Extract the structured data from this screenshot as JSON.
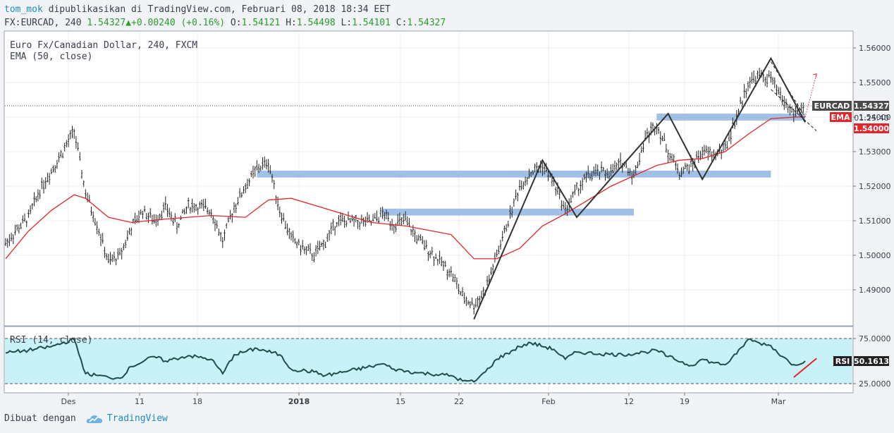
{
  "header": {
    "author": "tom_mok",
    "published": "dipublikasikan di TradingView.com, Februari 08, 2018 18:34 EET",
    "symbol": "FX:EURCAD, 240",
    "last": "1.54327",
    "arrow": "▲",
    "change": "+0.00240 (+0.16%)",
    "o_label": "O:",
    "o": "1.54121",
    "h_label": "H:",
    "h": "1.54498",
    "l_label": "L:",
    "l": "1.54101",
    "c_label": "C:",
    "c": "1.54327"
  },
  "legend": {
    "line1": "Euro Fx/Canadian Dollar, 240, FXCM",
    "line2": "EMA (50, close)",
    "rsi": "RSI (14, close)"
  },
  "price_axis": {
    "ticks": [
      "1.56000",
      "1.55000",
      "1.54000",
      "1.53000",
      "1.52000",
      "1.51000",
      "1.50000",
      "1.49000"
    ],
    "labels": {
      "symbol": "EURCAD",
      "symbol_value": "1.54327",
      "ema": "EMA",
      "countdown": "01:25:40",
      "ema_value": "1.54000"
    }
  },
  "rsi_axis": {
    "ticks": [
      "75.0000",
      "25.0000"
    ],
    "label": "RSI",
    "value": "50.1613"
  },
  "time_axis": [
    "Des",
    "11",
    "18",
    "2018",
    "15",
    "22",
    "Feb",
    "12",
    "19",
    "Mar"
  ],
  "footer": {
    "made_with": "Dibuat dengan",
    "brand": "TradingView"
  },
  "colors": {
    "ema": "#e3262b",
    "zone": "#8fb6e0",
    "rsi_bg": "#c8f2f8",
    "up_arrow": "#2a9d2a",
    "accent": "#1e8bc3"
  },
  "chart_data": {
    "type": "line",
    "title": "Euro Fx/Canadian Dollar, 240, FXCM",
    "ylim": [
      1.4805,
      1.5638
    ],
    "price_path": [
      [
        "Nov 30",
        1.5035
      ],
      [
        "Des 1",
        1.5075
      ],
      [
        "Des 2",
        1.511
      ],
      [
        "Des 3",
        1.519
      ],
      [
        "Des 4",
        1.5245
      ],
      [
        "Des 5",
        1.53
      ],
      [
        "Des 6",
        1.536
      ],
      [
        "Des 7",
        1.518
      ],
      [
        "Des 8",
        1.509
      ],
      [
        "Des 9",
        1.498
      ],
      [
        "Des 10",
        1.5
      ],
      [
        "Des 11",
        1.508
      ],
      [
        "Des 12",
        1.513
      ],
      [
        "Des 13",
        1.51
      ],
      [
        "Des 14",
        1.514
      ],
      [
        "Des 15",
        1.5085
      ],
      [
        "Des 16",
        1.5145
      ],
      [
        "Des 17",
        1.514
      ],
      [
        "Des 18",
        1.513
      ],
      [
        "Des 19",
        1.504
      ],
      [
        "Des 20",
        1.514
      ],
      [
        "Des 21",
        1.52
      ],
      [
        "Des 22",
        1.525
      ],
      [
        "Des 23",
        1.527
      ],
      [
        "Des 24",
        1.513
      ],
      [
        "Des 25",
        1.505
      ],
      [
        "Des 26",
        1.502
      ],
      [
        "Des 27",
        1.5
      ],
      [
        "Des 28",
        1.504
      ],
      [
        "Des 29",
        1.51
      ],
      [
        "Jan 1",
        1.5095
      ],
      [
        "Jan 2",
        1.512
      ],
      [
        "Jan 3",
        1.509
      ],
      [
        "Jan 4",
        1.51
      ],
      [
        "Jan 5",
        1.505
      ],
      [
        "Jan 8",
        1.495
      ],
      [
        "Jan 9",
        1.488
      ],
      [
        "Jan 10",
        1.4855
      ],
      [
        "Jan 11",
        1.49
      ],
      [
        "Jan 12",
        1.5
      ],
      [
        "Jan 13",
        1.51
      ],
      [
        "Jan 14",
        1.52
      ],
      [
        "Jan 15",
        1.524
      ],
      [
        "Jan 16",
        1.526
      ],
      [
        "Jan 17",
        1.521
      ],
      [
        "Jan 18",
        1.513
      ],
      [
        "Jan 19",
        1.519
      ],
      [
        "Jan 20",
        1.523
      ],
      [
        "Jan 21",
        1.524
      ],
      [
        "Jan 22",
        1.524
      ],
      [
        "Jan 23",
        1.527
      ],
      [
        "Jan 24",
        1.523
      ],
      [
        "Jan 25",
        1.534
      ],
      [
        "Jan 26",
        1.538
      ],
      [
        "Jan 27",
        1.53
      ],
      [
        "Jan 28",
        1.524
      ],
      [
        "Jan 29",
        1.526
      ],
      [
        "Jan 30",
        1.53
      ],
      [
        "Jan 31",
        1.529
      ],
      [
        "Feb 1",
        1.531
      ],
      [
        "Feb 2",
        1.54
      ],
      [
        "Feb 3",
        1.55
      ],
      [
        "Feb 4",
        1.552
      ],
      [
        "Feb 5",
        1.551
      ],
      [
        "Feb 6",
        1.545
      ],
      [
        "Feb 7",
        1.541
      ],
      [
        "Feb 8",
        1.5433
      ]
    ],
    "ema_path": [
      [
        "Nov 30",
        1.499
      ],
      [
        "Des 2",
        1.507
      ],
      [
        "Des 4",
        1.513
      ],
      [
        "Des 6",
        1.5175
      ],
      [
        "Des 7",
        1.5165
      ],
      [
        "Des 9",
        1.511
      ],
      [
        "Des 11",
        1.5095
      ],
      [
        "Des 14",
        1.5105
      ],
      [
        "Des 18",
        1.5115
      ],
      [
        "Des 21",
        1.511
      ],
      [
        "Des 23",
        1.516
      ],
      [
        "Des 25",
        1.5165
      ],
      [
        "Des 28",
        1.5135
      ],
      [
        "Jan 1",
        1.5095
      ],
      [
        "Jan 4",
        1.5085
      ],
      [
        "Jan 8",
        1.506
      ],
      [
        "Jan 10",
        1.499
      ],
      [
        "Jan 12",
        1.499
      ],
      [
        "Jan 14",
        1.502
      ],
      [
        "Jan 16",
        1.5085
      ],
      [
        "Jan 18",
        1.512
      ],
      [
        "Jan 20",
        1.516
      ],
      [
        "Jan 22",
        1.52
      ],
      [
        "Jan 24",
        1.523
      ],
      [
        "Jan 26",
        1.526
      ],
      [
        "Jan 28",
        1.5275
      ],
      [
        "Jan 30",
        1.528
      ],
      [
        "Feb 1",
        1.53
      ],
      [
        "Feb 3",
        1.535
      ],
      [
        "Feb 5",
        1.5395
      ],
      [
        "Feb 7",
        1.54
      ],
      [
        "Feb 8",
        1.54
      ]
    ],
    "zigzag": [
      [
        "Jan 10",
        1.4815
      ],
      [
        "Jan 16",
        1.5275
      ],
      [
        "Jan 19",
        1.511
      ],
      [
        "Jan 27",
        1.541
      ],
      [
        "Jan 30",
        1.522
      ],
      [
        "Feb 5",
        1.557
      ],
      [
        "Feb 8",
        1.5385
      ]
    ],
    "projection": [
      [
        "Feb 8",
        1.54
      ],
      [
        "Feb 9",
        1.5525
      ]
    ],
    "zones": [
      {
        "from": "Jan 26",
        "to": "Feb 8",
        "y0": 1.539,
        "y1": 1.541
      },
      {
        "from": "Des 22",
        "to": "Feb 5",
        "y0": 1.5225,
        "y1": 1.5245
      },
      {
        "from": "Jan 2",
        "to": "Jan 24",
        "y0": 1.5115,
        "y1": 1.5135
      }
    ],
    "channel": {
      "upper": [
        [
          "Feb 5",
          1.556
        ],
        [
          "Feb 8",
          1.54
        ]
      ],
      "lower": [
        [
          "Feb 5",
          1.548
        ],
        [
          "Feb 9",
          1.536
        ]
      ]
    },
    "last_price": 1.54327,
    "rsi": {
      "ylim": [
        20,
        80
      ],
      "levels": [
        75,
        25
      ],
      "values": [
        [
          "Nov 30",
          59
        ],
        [
          "Des 2",
          62
        ],
        [
          "Des 4",
          66
        ],
        [
          "Des 6",
          74
        ],
        [
          "Des 7",
          36
        ],
        [
          "Des 9",
          32
        ],
        [
          "Des 10",
          31
        ],
        [
          "Des 11",
          44
        ],
        [
          "Des 13",
          55
        ],
        [
          "Des 14",
          50
        ],
        [
          "Des 16",
          56
        ],
        [
          "Des 18",
          52
        ],
        [
          "Des 19",
          36
        ],
        [
          "Des 20",
          57
        ],
        [
          "Des 22",
          64
        ],
        [
          "Des 24",
          57
        ],
        [
          "Des 25",
          41
        ],
        [
          "Des 27",
          38
        ],
        [
          "Des 28",
          34
        ],
        [
          "Jan 1",
          44
        ],
        [
          "Jan 2",
          47
        ],
        [
          "Jan 3",
          41
        ],
        [
          "Jan 5",
          37
        ],
        [
          "Jan 8",
          34
        ],
        [
          "Jan 9",
          28
        ],
        [
          "Jan 10",
          27
        ],
        [
          "Jan 11",
          38
        ],
        [
          "Jan 12",
          52
        ],
        [
          "Jan 14",
          66
        ],
        [
          "Jan 15",
          70
        ],
        [
          "Jan 17",
          63
        ],
        [
          "Jan 18",
          52
        ],
        [
          "Jan 19",
          60
        ],
        [
          "Jan 21",
          58
        ],
        [
          "Jan 23",
          57
        ],
        [
          "Jan 25",
          60
        ],
        [
          "Jan 26",
          62
        ],
        [
          "Jan 27",
          55
        ],
        [
          "Jan 29",
          45
        ],
        [
          "Jan 30",
          52
        ],
        [
          "Jan 31",
          48
        ],
        [
          "Feb 1",
          46
        ],
        [
          "Feb 2",
          58
        ],
        [
          "Feb 3",
          74
        ],
        [
          "Feb 4",
          70
        ],
        [
          "Feb 5",
          67
        ],
        [
          "Feb 6",
          55
        ],
        [
          "Feb 7",
          46
        ],
        [
          "Feb 8",
          50
        ]
      ],
      "trendline": [
        [
          "Feb 7",
          32
        ],
        [
          "Feb 9",
          53
        ]
      ]
    }
  }
}
